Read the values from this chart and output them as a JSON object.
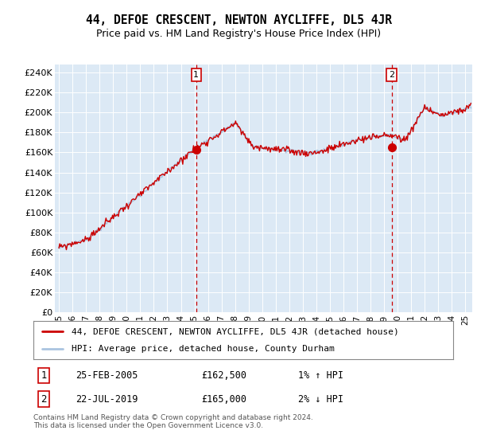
{
  "title": "44, DEFOE CRESCENT, NEWTON AYCLIFFE, DL5 4JR",
  "subtitle": "Price paid vs. HM Land Registry's House Price Index (HPI)",
  "ylabel_ticks": [
    "£0",
    "£20K",
    "£40K",
    "£60K",
    "£80K",
    "£100K",
    "£120K",
    "£140K",
    "£160K",
    "£180K",
    "£200K",
    "£220K",
    "£240K"
  ],
  "ylim": [
    0,
    248000
  ],
  "yticks": [
    0,
    20000,
    40000,
    60000,
    80000,
    100000,
    120000,
    140000,
    160000,
    180000,
    200000,
    220000,
    240000
  ],
  "xlim_start": 1994.7,
  "xlim_end": 2025.5,
  "xtick_years": [
    1995,
    1996,
    1997,
    1998,
    1999,
    2000,
    2001,
    2002,
    2003,
    2004,
    2005,
    2006,
    2007,
    2008,
    2009,
    2010,
    2011,
    2012,
    2013,
    2014,
    2015,
    2016,
    2017,
    2018,
    2019,
    2020,
    2021,
    2022,
    2023,
    2024,
    2025
  ],
  "sale1_x": 2005.13,
  "sale1_y": 162500,
  "sale1_label": "1",
  "sale1_date": "25-FEB-2005",
  "sale1_price": "£162,500",
  "sale1_hpi": "1% ↑ HPI",
  "sale2_x": 2019.55,
  "sale2_y": 165000,
  "sale2_label": "2",
  "sale2_date": "22-JUL-2019",
  "sale2_price": "£165,000",
  "sale2_hpi": "2% ↓ HPI",
  "hpi_line_color": "#aac4e0",
  "price_line_color": "#cc0000",
  "dot_color": "#cc0000",
  "vline_color": "#cc0000",
  "plot_bg": "#dce9f5",
  "legend_label1": "44, DEFOE CRESCENT, NEWTON AYCLIFFE, DL5 4JR (detached house)",
  "legend_label2": "HPI: Average price, detached house, County Durham",
  "footer": "Contains HM Land Registry data © Crown copyright and database right 2024.\nThis data is licensed under the Open Government Licence v3.0."
}
